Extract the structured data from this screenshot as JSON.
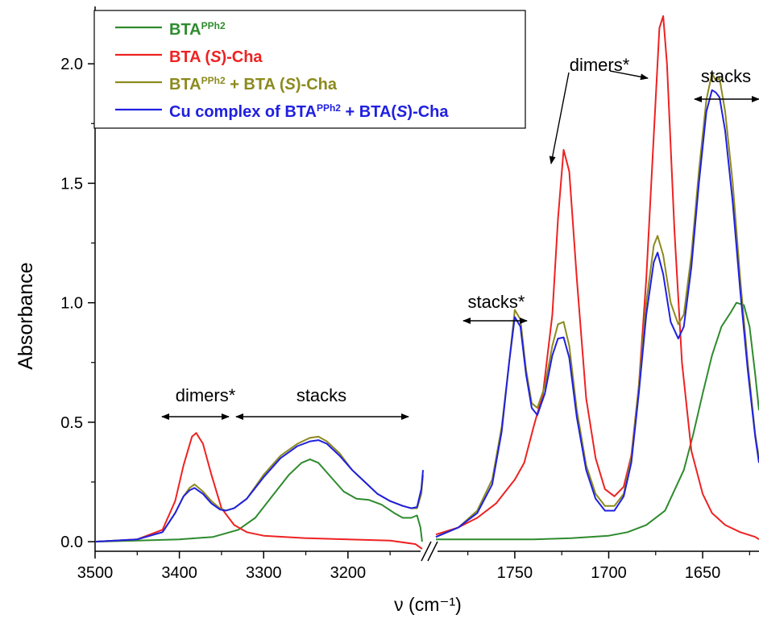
{
  "chart_data": {
    "type": "line",
    "ylabel": "Absorbance",
    "xlabel": "ν (cm⁻¹)",
    "ylim": [
      -0.04,
      2.24
    ],
    "yticks": [
      0.0,
      0.5,
      1.0,
      1.5,
      2.0
    ],
    "ytick_labels": [
      "0.0",
      "0.5",
      "1.0",
      "1.5",
      "2.0"
    ],
    "x_axis_broken": true,
    "panels": [
      {
        "xlim": [
          3500,
          3110
        ],
        "xticks": [
          3500,
          3400,
          3300,
          3200
        ],
        "xtick_labels": [
          "3500",
          "3400",
          "3300",
          "3200"
        ]
      },
      {
        "xlim": [
          1792,
          1620
        ],
        "xticks": [
          1750,
          1700,
          1650
        ],
        "xtick_labels": [
          "1750",
          "1700",
          "1650"
        ]
      }
    ],
    "legend": {
      "position": "top-left",
      "entries": [
        {
          "series": "green",
          "parts": [
            {
              "t": "BTA"
            },
            {
              "t": "PPh2",
              "sup": true
            }
          ]
        },
        {
          "series": "red",
          "parts": [
            {
              "t": "BTA ("
            },
            {
              "t": "S",
              "it": true
            },
            {
              "t": ")-Cha"
            }
          ]
        },
        {
          "series": "olive",
          "parts": [
            {
              "t": "BTA"
            },
            {
              "t": "PPh2",
              "sup": true
            },
            {
              "t": " + BTA ("
            },
            {
              "t": "S",
              "it": true
            },
            {
              "t": ")-Cha"
            }
          ]
        },
        {
          "series": "blue",
          "parts": [
            {
              "t": "Cu complex of BTA"
            },
            {
              "t": "PPh2",
              "sup": true
            },
            {
              "t": " + BTA("
            },
            {
              "t": "S",
              "it": true
            },
            {
              "t": ")-Cha"
            }
          ]
        }
      ]
    },
    "annotations": [
      {
        "text": "dimers*"
      },
      {
        "text": "stacks"
      },
      {
        "text": "stacks*"
      },
      {
        "text": "dimers*"
      },
      {
        "text": "stacks"
      }
    ],
    "series": [
      {
        "key": "green",
        "color": "#2e8b2e",
        "segments": [
          [
            [
              3500,
              0.0
            ],
            [
              3450,
              0.005
            ],
            [
              3400,
              0.01
            ],
            [
              3360,
              0.02
            ],
            [
              3330,
              0.05
            ],
            [
              3310,
              0.1
            ],
            [
              3290,
              0.19
            ],
            [
              3270,
              0.28
            ],
            [
              3255,
              0.33
            ],
            [
              3245,
              0.345
            ],
            [
              3235,
              0.33
            ],
            [
              3220,
              0.27
            ],
            [
              3205,
              0.21
            ],
            [
              3190,
              0.18
            ],
            [
              3175,
              0.175
            ],
            [
              3160,
              0.155
            ],
            [
              3145,
              0.12
            ],
            [
              3135,
              0.1
            ],
            [
              3125,
              0.1
            ],
            [
              3118,
              0.11
            ],
            [
              3114,
              0.06
            ],
            [
              3112,
              0.0
            ]
          ],
          [
            [
              1792,
              0.01
            ],
            [
              1760,
              0.01
            ],
            [
              1740,
              0.01
            ],
            [
              1720,
              0.015
            ],
            [
              1700,
              0.025
            ],
            [
              1690,
              0.04
            ],
            [
              1680,
              0.07
            ],
            [
              1670,
              0.13
            ],
            [
              1660,
              0.3
            ],
            [
              1655,
              0.45
            ],
            [
              1650,
              0.62
            ],
            [
              1645,
              0.78
            ],
            [
              1640,
              0.9
            ],
            [
              1635,
              0.96
            ],
            [
              1632,
              1.0
            ],
            [
              1628,
              0.99
            ],
            [
              1625,
              0.9
            ],
            [
              1622,
              0.7
            ],
            [
              1620,
              0.55
            ]
          ]
        ]
      },
      {
        "key": "red",
        "color": "#ee2222",
        "segments": [
          [
            [
              3500,
              0.0
            ],
            [
              3450,
              0.01
            ],
            [
              3420,
              0.05
            ],
            [
              3405,
              0.17
            ],
            [
              3395,
              0.32
            ],
            [
              3385,
              0.44
            ],
            [
              3380,
              0.455
            ],
            [
              3372,
              0.41
            ],
            [
              3362,
              0.28
            ],
            [
              3350,
              0.14
            ],
            [
              3335,
              0.07
            ],
            [
              3320,
              0.04
            ],
            [
              3300,
              0.025
            ],
            [
              3250,
              0.015
            ],
            [
              3200,
              0.01
            ],
            [
              3150,
              0.005
            ],
            [
              3120,
              -0.01
            ],
            [
              3112,
              -0.03
            ]
          ],
          [
            [
              1792,
              0.03
            ],
            [
              1780,
              0.06
            ],
            [
              1770,
              0.1
            ],
            [
              1760,
              0.16
            ],
            [
              1750,
              0.26
            ],
            [
              1745,
              0.33
            ],
            [
              1740,
              0.48
            ],
            [
              1735,
              0.62
            ],
            [
              1730,
              0.95
            ],
            [
              1727,
              1.35
            ],
            [
              1724,
              1.64
            ],
            [
              1721,
              1.55
            ],
            [
              1717,
              1.1
            ],
            [
              1712,
              0.6
            ],
            [
              1707,
              0.35
            ],
            [
              1702,
              0.22
            ],
            [
              1697,
              0.19
            ],
            [
              1692,
              0.23
            ],
            [
              1688,
              0.36
            ],
            [
              1684,
              0.65
            ],
            [
              1680,
              1.1
            ],
            [
              1676,
              1.7
            ],
            [
              1673,
              2.15
            ],
            [
              1671,
              2.2
            ],
            [
              1669,
              2.0
            ],
            [
              1665,
              1.3
            ],
            [
              1661,
              0.75
            ],
            [
              1656,
              0.38
            ],
            [
              1650,
              0.2
            ],
            [
              1645,
              0.12
            ],
            [
              1638,
              0.07
            ],
            [
              1630,
              0.04
            ],
            [
              1622,
              0.02
            ],
            [
              1620,
              0.01
            ]
          ]
        ]
      },
      {
        "key": "olive",
        "color": "#8c8a1e",
        "segments": [
          [
            [
              3500,
              0.0
            ],
            [
              3450,
              0.01
            ],
            [
              3420,
              0.04
            ],
            [
              3405,
              0.12
            ],
            [
              3395,
              0.19
            ],
            [
              3388,
              0.225
            ],
            [
              3382,
              0.24
            ],
            [
              3372,
              0.21
            ],
            [
              3362,
              0.17
            ],
            [
              3352,
              0.14
            ],
            [
              3345,
              0.13
            ],
            [
              3335,
              0.14
            ],
            [
              3320,
              0.18
            ],
            [
              3300,
              0.28
            ],
            [
              3280,
              0.36
            ],
            [
              3260,
              0.41
            ],
            [
              3245,
              0.435
            ],
            [
              3235,
              0.44
            ],
            [
              3225,
              0.42
            ],
            [
              3210,
              0.37
            ],
            [
              3195,
              0.3
            ],
            [
              3180,
              0.25
            ],
            [
              3165,
              0.2
            ],
            [
              3150,
              0.17
            ],
            [
              3135,
              0.15
            ],
            [
              3125,
              0.14
            ],
            [
              3118,
              0.14
            ],
            [
              3113,
              0.2
            ],
            [
              3111,
              0.28
            ]
          ],
          [
            [
              1792,
              0.02
            ],
            [
              1780,
              0.06
            ],
            [
              1770,
              0.13
            ],
            [
              1762,
              0.26
            ],
            [
              1757,
              0.48
            ],
            [
              1753,
              0.75
            ],
            [
              1750,
              0.97
            ],
            [
              1747,
              0.93
            ],
            [
              1744,
              0.72
            ],
            [
              1741,
              0.58
            ],
            [
              1738,
              0.56
            ],
            [
              1734,
              0.65
            ],
            [
              1730,
              0.82
            ],
            [
              1727,
              0.91
            ],
            [
              1724,
              0.92
            ],
            [
              1721,
              0.82
            ],
            [
              1717,
              0.55
            ],
            [
              1712,
              0.32
            ],
            [
              1707,
              0.2
            ],
            [
              1702,
              0.15
            ],
            [
              1697,
              0.15
            ],
            [
              1692,
              0.2
            ],
            [
              1688,
              0.35
            ],
            [
              1684,
              0.65
            ],
            [
              1680,
              1.0
            ],
            [
              1676,
              1.24
            ],
            [
              1674,
              1.28
            ],
            [
              1671,
              1.2
            ],
            [
              1667,
              1.0
            ],
            [
              1663,
              0.91
            ],
            [
              1660,
              0.95
            ],
            [
              1656,
              1.2
            ],
            [
              1652,
              1.55
            ],
            [
              1648,
              1.85
            ],
            [
              1645,
              1.96
            ],
            [
              1643,
              1.93
            ],
            [
              1641,
              1.94
            ],
            [
              1638,
              1.8
            ],
            [
              1634,
              1.5
            ],
            [
              1630,
              1.1
            ],
            [
              1626,
              0.75
            ],
            [
              1622,
              0.45
            ],
            [
              1620,
              0.35
            ]
          ]
        ]
      },
      {
        "key": "blue",
        "color": "#2020e0",
        "segments": [
          [
            [
              3500,
              0.0
            ],
            [
              3450,
              0.01
            ],
            [
              3420,
              0.04
            ],
            [
              3405,
              0.12
            ],
            [
              3395,
              0.19
            ],
            [
              3388,
              0.215
            ],
            [
              3382,
              0.225
            ],
            [
              3372,
              0.2
            ],
            [
              3362,
              0.16
            ],
            [
              3352,
              0.135
            ],
            [
              3345,
              0.13
            ],
            [
              3335,
              0.14
            ],
            [
              3320,
              0.18
            ],
            [
              3300,
              0.27
            ],
            [
              3280,
              0.35
            ],
            [
              3260,
              0.4
            ],
            [
              3245,
              0.42
            ],
            [
              3235,
              0.425
            ],
            [
              3225,
              0.41
            ],
            [
              3210,
              0.36
            ],
            [
              3195,
              0.3
            ],
            [
              3180,
              0.25
            ],
            [
              3165,
              0.2
            ],
            [
              3150,
              0.17
            ],
            [
              3135,
              0.15
            ],
            [
              3125,
              0.14
            ],
            [
              3118,
              0.145
            ],
            [
              3113,
              0.22
            ],
            [
              3111,
              0.3
            ]
          ],
          [
            [
              1792,
              0.02
            ],
            [
              1780,
              0.06
            ],
            [
              1770,
              0.12
            ],
            [
              1762,
              0.24
            ],
            [
              1757,
              0.46
            ],
            [
              1753,
              0.75
            ],
            [
              1750,
              0.94
            ],
            [
              1747,
              0.9
            ],
            [
              1744,
              0.7
            ],
            [
              1741,
              0.56
            ],
            [
              1738,
              0.53
            ],
            [
              1734,
              0.62
            ],
            [
              1730,
              0.78
            ],
            [
              1727,
              0.85
            ],
            [
              1724,
              0.855
            ],
            [
              1721,
              0.77
            ],
            [
              1717,
              0.52
            ],
            [
              1712,
              0.3
            ],
            [
              1707,
              0.18
            ],
            [
              1702,
              0.13
            ],
            [
              1697,
              0.13
            ],
            [
              1692,
              0.19
            ],
            [
              1688,
              0.33
            ],
            [
              1684,
              0.62
            ],
            [
              1680,
              0.95
            ],
            [
              1676,
              1.17
            ],
            [
              1674,
              1.21
            ],
            [
              1671,
              1.12
            ],
            [
              1667,
              0.92
            ],
            [
              1663,
              0.85
            ],
            [
              1660,
              0.9
            ],
            [
              1656,
              1.15
            ],
            [
              1652,
              1.5
            ],
            [
              1648,
              1.8
            ],
            [
              1645,
              1.89
            ],
            [
              1643,
              1.88
            ],
            [
              1641,
              1.86
            ],
            [
              1638,
              1.72
            ],
            [
              1634,
              1.42
            ],
            [
              1630,
              1.05
            ],
            [
              1626,
              0.72
            ],
            [
              1622,
              0.44
            ],
            [
              1620,
              0.33
            ]
          ]
        ]
      }
    ]
  }
}
